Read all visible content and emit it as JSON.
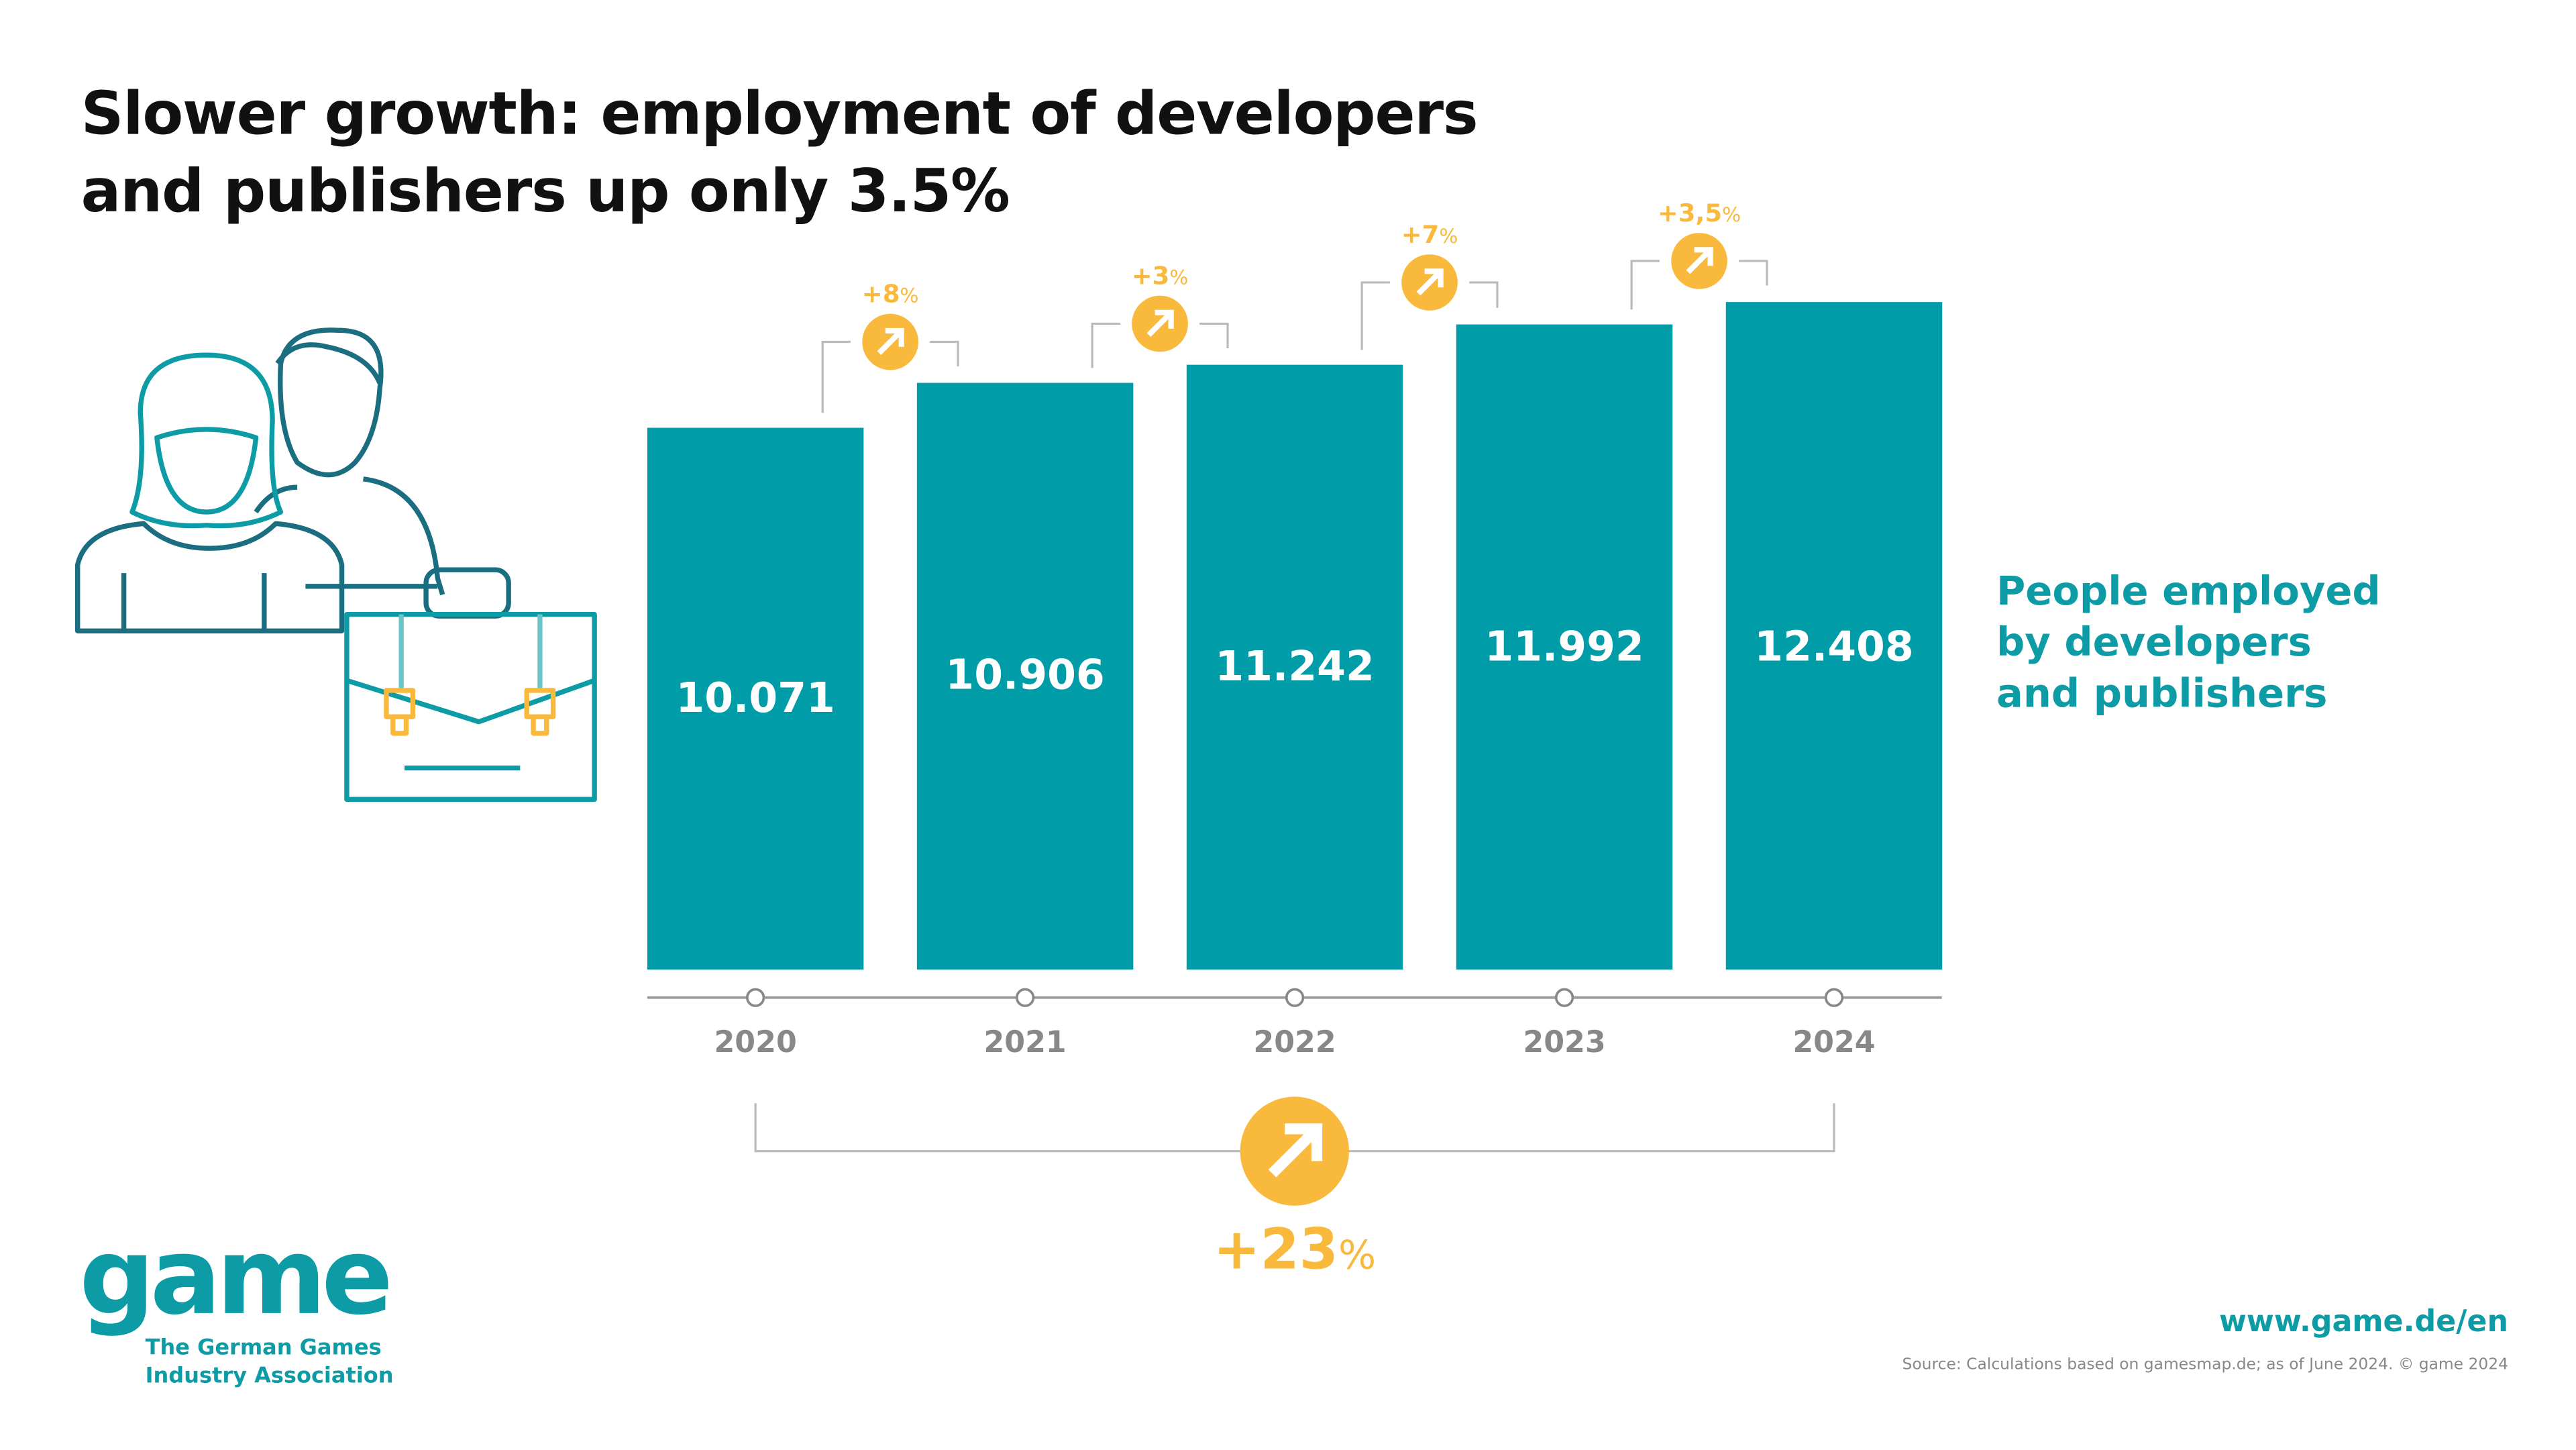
{
  "title": [
    "Slower growth: employment of developers",
    "and publishers up only 3.5%"
  ],
  "legend": [
    "People employed",
    "by developers",
    "and publishers"
  ],
  "logo": {
    "wordmark": "game",
    "subtitle": [
      "The German Games",
      "Industry Association"
    ]
  },
  "url": "www.game.de/en",
  "source": "Source: Calculations based on gamesmap.de; as of June 2024. © game 2024",
  "colors": {
    "bar": "#009ca8",
    "accent": "#f9b93c",
    "axis": "#999999"
  },
  "chart_data": {
    "type": "bar",
    "categories": [
      "2020",
      "2021",
      "2022",
      "2023",
      "2024"
    ],
    "values": [
      10071,
      10906,
      11242,
      11992,
      12408
    ],
    "value_labels": [
      "10.071",
      "10.906",
      "11.242",
      "11.992",
      "12.408"
    ],
    "growth_labels": [
      {
        "num": "+8",
        "unit": "%"
      },
      {
        "num": "+3",
        "unit": "%"
      },
      {
        "num": "+7",
        "unit": "%"
      },
      {
        "num": "+3,5",
        "unit": "%"
      }
    ],
    "total_growth": {
      "num": "+23",
      "unit": "%"
    },
    "ylim": [
      0,
      12408
    ],
    "grid": false,
    "legend_position": "right"
  }
}
